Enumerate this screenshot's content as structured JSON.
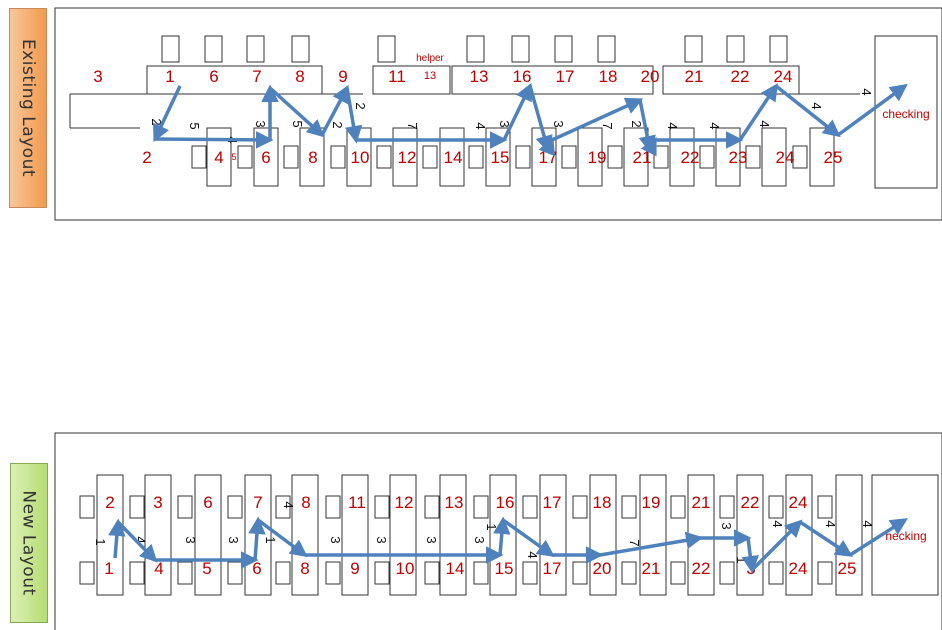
{
  "existing": {
    "label": "Existing Layout",
    "tops": [
      {
        "t": "3",
        "c": "red"
      },
      {
        "t": "1",
        "c": "red"
      },
      {
        "t": "6",
        "c": "red"
      },
      {
        "t": "7",
        "c": "red"
      },
      {
        "t": "8",
        "c": "red"
      },
      {
        "t": "9",
        "c": "red"
      },
      {
        "t": "11",
        "c": "red"
      },
      {
        "t": "13",
        "c": "red"
      },
      {
        "t": "16",
        "c": "red"
      },
      {
        "t": "17",
        "c": "red"
      },
      {
        "t": "18",
        "c": "red"
      },
      {
        "t": "20",
        "c": "red"
      },
      {
        "t": "21",
        "c": "red"
      },
      {
        "t": "22",
        "c": "red"
      },
      {
        "t": "24",
        "c": "red"
      },
      {
        "t": "helper",
        "c": "red"
      },
      {
        "t": "13",
        "c": "red"
      },
      {
        "t": "2",
        "c": "red"
      },
      {
        "t": "4",
        "c": "red"
      },
      {
        "t": "5",
        "c": "red"
      },
      {
        "t": "6",
        "c": "red"
      },
      {
        "t": "8",
        "c": "red"
      },
      {
        "t": "10",
        "c": "red"
      },
      {
        "t": "12",
        "c": "red"
      },
      {
        "t": "14",
        "c": "red"
      },
      {
        "t": "15",
        "c": "red"
      },
      {
        "t": "17",
        "c": "red"
      },
      {
        "t": "19",
        "c": "red"
      },
      {
        "t": "21",
        "c": "red"
      },
      {
        "t": "22",
        "c": "red"
      },
      {
        "t": "23",
        "c": "red"
      },
      {
        "t": "24",
        "c": "red"
      },
      {
        "t": "25",
        "c": "red"
      },
      {
        "t": "checking",
        "c": "red"
      }
    ],
    "distances": [
      "2",
      "5",
      "4",
      "3",
      "5",
      "2",
      "2",
      "7",
      "4",
      "3",
      "3",
      "7",
      "2",
      "4",
      "4",
      "4",
      "4",
      "4"
    ]
  },
  "new": {
    "label": "New Layout",
    "labels": [
      "2",
      "3",
      "6",
      "7",
      "8",
      "11",
      "12",
      "13",
      "16",
      "17",
      "18",
      "19",
      "21",
      "22",
      "24",
      "1",
      "4",
      "5",
      "6",
      "8",
      "9",
      "10",
      "14",
      "15",
      "17",
      "20",
      "21",
      "22",
      "3",
      "24",
      "25",
      "hecking"
    ],
    "distances": [
      "1",
      "4",
      "3",
      "3",
      "1",
      "4",
      "3",
      "3",
      "3",
      "3",
      "1",
      "4",
      "7",
      "3",
      "1",
      "4",
      "4",
      "4"
    ]
  },
  "colors": {
    "arrow": "#4f81bd",
    "label": "#c00000",
    "line": "#333333"
  }
}
